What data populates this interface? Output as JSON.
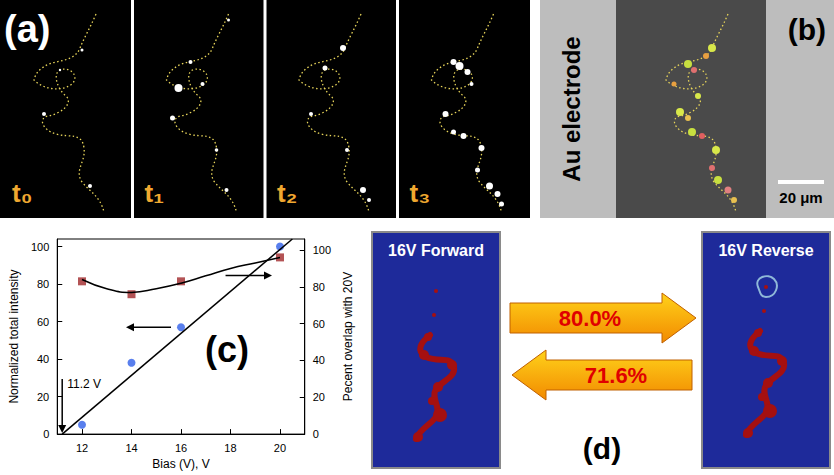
{
  "panel_a": {
    "letter": "(a)",
    "frames": [
      "t₀",
      "t₁",
      "t₂",
      "t₃"
    ]
  },
  "panel_b": {
    "letter": "(b)",
    "electrode_label": "Au electrode",
    "scale_bar": "20 μm"
  },
  "panel_c": {
    "letter": "(c)"
  },
  "chart_data": {
    "type": "scatter",
    "x_label": "Bias (V), V",
    "y_label": "Normalized total intensity",
    "y2_label": "Pecent overlap with 20V",
    "xlim": [
      11,
      21
    ],
    "xticks": [
      12,
      14,
      16,
      18,
      20
    ],
    "ylim": [
      0,
      104
    ],
    "yticks": [
      0,
      20,
      40,
      60,
      80,
      100
    ],
    "y2lim": [
      0,
      106
    ],
    "y2ticks": [
      0,
      20,
      40,
      60,
      80,
      100
    ],
    "grid": false,
    "series": [
      {
        "type": "scatter",
        "marker": "circle",
        "color": "#2f5fe8",
        "x": [
          12,
          14,
          16,
          20
        ],
        "values": [
          5,
          38,
          57,
          100
        ]
      },
      {
        "type": "scatter",
        "marker": "square",
        "color": "#a0282a",
        "axis": "y2",
        "x": [
          12,
          14,
          16,
          20
        ],
        "values": [
          83,
          76,
          83,
          96
        ]
      },
      {
        "type": "line",
        "line_style": "solid",
        "color": "#000000",
        "x": [
          11.2,
          20.5
        ],
        "values": [
          0,
          104
        ]
      },
      {
        "type": "line",
        "line_style": "smooth",
        "color": "#000000",
        "axis": "y2",
        "x": [
          12,
          13,
          14,
          15,
          16,
          17,
          18,
          19,
          20
        ],
        "values": [
          84,
          79,
          77,
          79,
          82,
          86,
          90,
          93,
          96
        ]
      }
    ],
    "annotations": [
      {
        "text": "11.2 V",
        "x": 11.2
      }
    ]
  },
  "panel_d": {
    "letter": "(d)",
    "left_title": "16V Forward",
    "right_title": "16V Reverse",
    "forward_to_reverse": "80.0%",
    "reverse_to_forward": "71.6%"
  }
}
